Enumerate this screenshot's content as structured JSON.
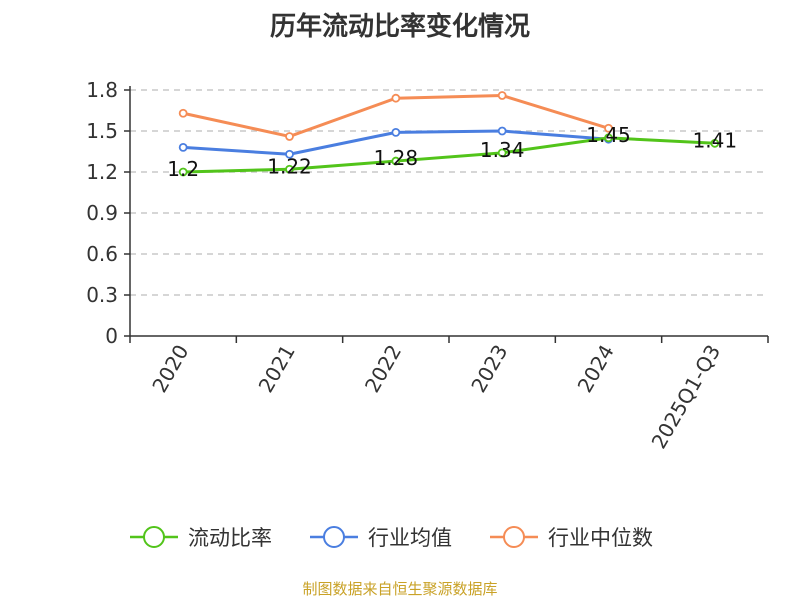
{
  "footer": "制图数据来自恒生聚源数据库",
  "colors": {
    "series": [
      "#52c41a",
      "#4a7ee0",
      "#f58c55"
    ],
    "grid": "#c8c8c8",
    "axis": "#333333",
    "footer": "#c9a227"
  },
  "chart_data": {
    "type": "line",
    "title": "历年流动比率变化情况",
    "xlabel": "",
    "ylabel": "",
    "categories": [
      "2020",
      "2021",
      "2022",
      "2023",
      "2024",
      "2025Q1-Q3"
    ],
    "ylim": [
      0,
      1.8
    ],
    "yticks": [
      "0",
      "0.3",
      "0.6",
      "0.9",
      "1.2",
      "1.5",
      "1.8"
    ],
    "grid": true,
    "legend_position": "bottom",
    "series": [
      {
        "name": "流动比率",
        "values": [
          1.2,
          1.22,
          1.28,
          1.34,
          1.45,
          1.41
        ],
        "labels": [
          "1.2",
          "1.22",
          "1.28",
          "1.34",
          "1.45",
          "1.41"
        ]
      },
      {
        "name": "行业均值",
        "values": [
          1.38,
          1.33,
          1.49,
          1.5,
          1.44,
          null
        ]
      },
      {
        "name": "行业中位数",
        "values": [
          1.63,
          1.46,
          1.74,
          1.76,
          1.52,
          null
        ]
      }
    ]
  }
}
